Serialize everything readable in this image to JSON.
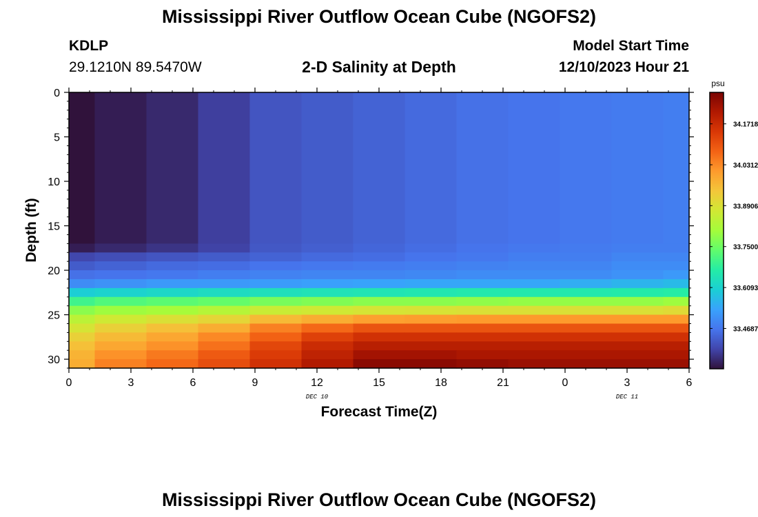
{
  "page": {
    "title": "Mississippi River Outflow Ocean Cube (NGOFS2)",
    "station_id": "KDLP",
    "station_coords": "29.1210N  89.5470W",
    "plot_title": "2-D Salinity at Depth",
    "model_start_label": "Model Start Time",
    "model_start_value": "12/10/2023 Hour 21",
    "footer_title": "Mississippi River Outflow Ocean Cube (NGOFS2)"
  },
  "chart_data": {
    "type": "heatmap",
    "title": "2-D Salinity at Depth",
    "xlabel": "Forecast Time(Z)",
    "ylabel": "Depth (ft)",
    "x_hours_elapsed_range": [
      0,
      30
    ],
    "x_tick_labels": [
      "0",
      "3",
      "6",
      "9",
      "12",
      "15",
      "18",
      "21",
      "0",
      "3",
      "6"
    ],
    "x_date_labels": [
      {
        "label": "DEC 10",
        "at_tick": "12"
      },
      {
        "label": "DEC 11",
        "at_tick": "3"
      }
    ],
    "y_ticks": [
      0,
      5,
      10,
      15,
      20,
      25,
      30
    ],
    "ylim": [
      0,
      31
    ],
    "y_reversed": true,
    "colorbar": {
      "unit": "psu",
      "range": [
        33.33,
        34.28
      ],
      "tick_labels": [
        "34.1718",
        "34.0312",
        "33.8906",
        "33.7500",
        "33.6093",
        "33.4687"
      ],
      "colormap": [
        "#30123b",
        "#4145ab",
        "#4675ed",
        "#39a2fc",
        "#1bcfd4",
        "#24eca6",
        "#61fc6c",
        "#a4fc3b",
        "#d1e834",
        "#f3c63a",
        "#fe9b2d",
        "#f36315",
        "#d93806",
        "#b11901",
        "#7a0403"
      ]
    },
    "time_columns": [
      0,
      1.25,
      3.75,
      6.25,
      8.75,
      11.25,
      13.75,
      16.25,
      18.75,
      21.25,
      23.75,
      26.25,
      28.75,
      30
    ],
    "depth_rows": [
      0,
      17,
      18,
      19,
      20,
      21,
      22,
      23,
      24,
      25,
      26,
      27,
      28,
      29,
      30,
      31
    ],
    "salinity": [
      [
        33.33,
        33.345,
        33.36,
        33.39,
        33.42,
        33.43,
        33.44,
        33.45,
        33.46,
        33.465,
        33.47,
        33.475,
        33.48
      ],
      [
        33.345,
        33.36,
        33.375,
        33.395,
        33.425,
        33.435,
        33.445,
        33.455,
        33.465,
        33.47,
        33.475,
        33.48,
        33.48
      ],
      [
        33.4,
        33.41,
        33.42,
        33.43,
        33.44,
        33.45,
        33.455,
        33.465,
        33.47,
        33.48,
        33.48,
        33.49,
        33.49
      ],
      [
        33.43,
        33.44,
        33.45,
        33.455,
        33.465,
        33.47,
        33.475,
        33.48,
        33.485,
        33.49,
        33.49,
        33.5,
        33.5
      ],
      [
        33.46,
        33.465,
        33.47,
        33.48,
        33.485,
        33.49,
        33.49,
        33.495,
        33.5,
        33.5,
        33.5,
        33.51,
        33.52
      ],
      [
        33.5,
        33.51,
        33.52,
        33.52,
        33.525,
        33.53,
        33.535,
        33.54,
        33.54,
        33.54,
        33.55,
        33.56,
        33.57
      ],
      [
        33.6,
        33.61,
        33.62,
        33.63,
        33.64,
        33.645,
        33.65,
        33.655,
        33.66,
        33.66,
        33.66,
        33.665,
        33.67
      ],
      [
        33.7,
        33.72,
        33.73,
        33.74,
        33.76,
        33.77,
        33.78,
        33.78,
        33.785,
        33.79,
        33.79,
        33.79,
        33.8
      ],
      [
        33.78,
        33.8,
        33.81,
        33.83,
        33.86,
        33.87,
        33.88,
        33.885,
        33.89,
        33.89,
        33.89,
        33.89,
        33.9
      ],
      [
        33.84,
        33.87,
        33.89,
        33.91,
        33.96,
        33.98,
        34.0,
        34.005,
        34.01,
        34.01,
        34.01,
        34.01,
        34.01
      ],
      [
        33.88,
        33.92,
        33.95,
        33.98,
        34.04,
        34.07,
        34.1,
        34.1,
        34.1,
        34.1,
        34.1,
        34.1,
        34.1
      ],
      [
        33.92,
        33.96,
        33.99,
        34.03,
        34.08,
        34.13,
        34.16,
        34.16,
        34.16,
        34.16,
        34.16,
        34.16,
        34.16
      ],
      [
        33.95,
        33.99,
        34.02,
        34.06,
        34.12,
        34.17,
        34.2,
        34.2,
        34.2,
        34.2,
        34.2,
        34.2,
        34.2
      ],
      [
        33.97,
        34.02,
        34.05,
        34.09,
        34.14,
        34.19,
        34.23,
        34.23,
        34.22,
        34.22,
        34.22,
        34.22,
        34.22
      ],
      [
        33.98,
        34.04,
        34.07,
        34.11,
        34.16,
        34.21,
        34.26,
        34.26,
        34.25,
        34.24,
        34.24,
        34.24,
        34.24
      ]
    ]
  }
}
